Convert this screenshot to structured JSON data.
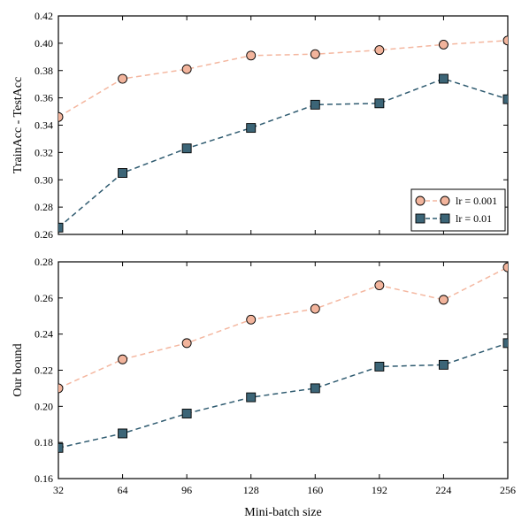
{
  "chart_data": [
    {
      "type": "line",
      "title": "",
      "xlabel": "",
      "ylabel": "TrainAcc - TestAcc",
      "x": [
        32,
        64,
        96,
        128,
        160,
        192,
        224,
        256
      ],
      "xlim": [
        32,
        256
      ],
      "ylim": [
        0.26,
        0.42
      ],
      "yticks": [
        "0.26",
        "0.28",
        "0.30",
        "0.32",
        "0.34",
        "0.36",
        "0.38",
        "0.40",
        "0.42"
      ],
      "grid": false,
      "legend": "bottom-right",
      "series": [
        {
          "name": "lr = 0.001",
          "marker": "circle",
          "color": "#f2b49c",
          "line_color": "#f4b7a0",
          "values": [
            0.346,
            0.374,
            0.381,
            0.391,
            0.392,
            0.395,
            0.399,
            0.402
          ]
        },
        {
          "name": "lr = 0.01",
          "marker": "square",
          "color": "#3c6577",
          "line_color": "#2f5b70",
          "values": [
            0.265,
            0.305,
            0.323,
            0.338,
            0.355,
            0.356,
            0.374,
            0.359
          ]
        }
      ]
    },
    {
      "type": "line",
      "title": "",
      "xlabel": "Mini-batch size",
      "ylabel": "Our bound",
      "x": [
        32,
        64,
        96,
        128,
        160,
        192,
        224,
        256
      ],
      "xticks": [
        "32",
        "64",
        "96",
        "128",
        "160",
        "192",
        "224",
        "256"
      ],
      "xlim": [
        32,
        256
      ],
      "ylim": [
        0.16,
        0.28
      ],
      "yticks": [
        "0.16",
        "0.18",
        "0.20",
        "0.22",
        "0.24",
        "0.26",
        "0.28"
      ],
      "grid": false,
      "series": [
        {
          "name": "lr = 0.001",
          "marker": "circle",
          "color": "#f2b49c",
          "line_color": "#f4b7a0",
          "values": [
            0.21,
            0.226,
            0.235,
            0.248,
            0.254,
            0.267,
            0.259,
            0.277
          ]
        },
        {
          "name": "lr = 0.01",
          "marker": "square",
          "color": "#3c6577",
          "line_color": "#2f5b70",
          "values": [
            0.177,
            0.185,
            0.196,
            0.205,
            0.21,
            0.222,
            0.223,
            0.235
          ]
        }
      ]
    }
  ]
}
